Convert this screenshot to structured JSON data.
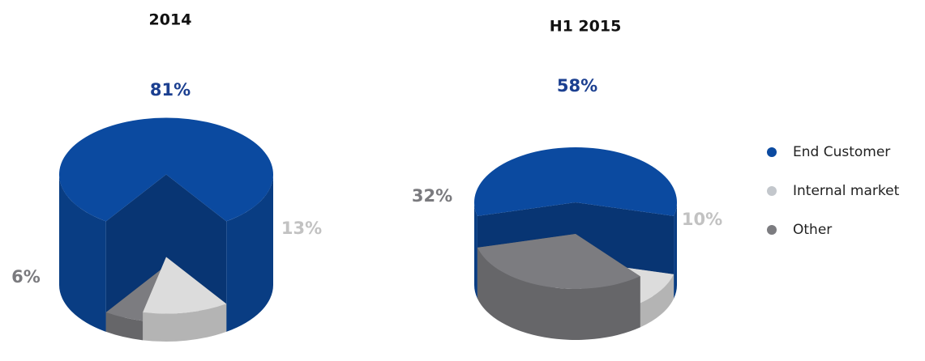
{
  "legend": {
    "categories": [
      "End Customer",
      "Internal market",
      "Other"
    ],
    "colors": [
      "#0b4aa0",
      "#dcdcdc",
      "#7c7c80"
    ]
  },
  "chart_data": [
    {
      "type": "pie",
      "title": "2014",
      "values": [
        81,
        13,
        6
      ],
      "value_labels": [
        "81%",
        "13%",
        "6%"
      ]
    },
    {
      "type": "pie",
      "title": "H1 2015",
      "values": [
        58,
        10,
        32
      ],
      "value_labels": [
        "58%",
        "10%",
        "32%"
      ]
    }
  ]
}
